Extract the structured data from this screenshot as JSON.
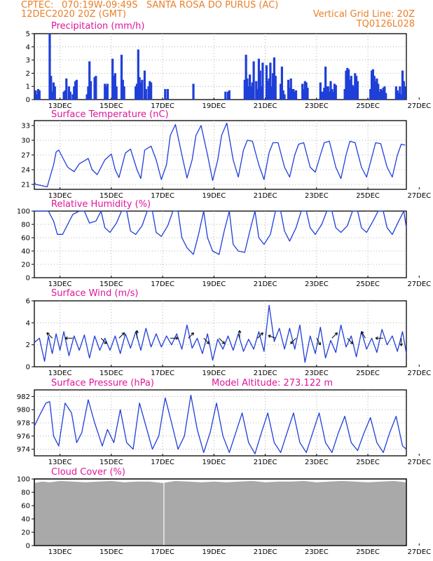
{
  "header": {
    "source": "CPTEC:",
    "location": "070:19W-09:49S   SANTA ROSA DO PURUS (AC)",
    "datetime": "12DEC2020 20Z (GMT)",
    "grid_note": "Vertical Grid Line: 20Z",
    "run_code": "TQ0126L028"
  },
  "colors": {
    "header": "#e8802a",
    "titles": "#e0169a",
    "lines": "#1f3fd8",
    "cloud": "#a9a9a9",
    "grid": "#a0a0a0"
  },
  "chart_data": [
    {
      "id": "precip",
      "type": "bar",
      "title": "Precipitation (mm/h)",
      "ylim": [
        0,
        5
      ],
      "yticks": [
        0,
        1,
        2,
        3,
        4,
        5
      ],
      "xticks": [
        "13DEC",
        "15DEC",
        "17DEC",
        "19DEC",
        "21DEC",
        "23DEC",
        "25DEC",
        "27DEC"
      ],
      "grid": true,
      "x_day_offset": [
        0.05,
        0.1,
        0.15,
        0.2,
        0.6,
        0.65,
        0.7,
        0.75,
        0.8,
        1.15,
        1.2,
        1.25,
        1.35,
        1.4,
        1.5,
        1.55,
        1.6,
        1.65,
        2.05,
        2.1,
        2.15,
        2.2,
        2.35,
        2.4,
        2.75,
        2.8,
        2.85,
        3.05,
        3.1,
        3.15,
        3.2,
        3.4,
        3.45,
        3.5,
        3.95,
        4.0,
        4.05,
        4.1,
        4.15,
        4.2,
        4.3,
        4.35,
        4.45,
        4.5,
        4.55,
        5.1,
        5.2,
        6.2,
        7.45,
        7.55,
        7.6,
        8.2,
        8.25,
        8.3,
        8.35,
        8.4,
        8.45,
        8.5,
        8.55,
        8.65,
        8.7,
        8.75,
        8.8,
        8.85,
        8.9,
        9.05,
        9.1,
        9.15,
        9.2,
        9.25,
        9.3,
        9.35,
        9.4,
        9.6,
        9.65,
        9.7,
        9.75,
        9.9,
        9.95,
        10.0,
        10.05,
        10.1,
        10.15,
        10.2,
        10.45,
        10.5,
        10.55,
        10.6,
        10.65,
        11.15,
        11.2,
        11.25,
        11.3,
        11.35,
        11.4,
        11.45,
        11.5,
        11.55,
        11.6,
        11.65,
        11.7,
        11.75,
        12.1,
        12.15,
        12.2,
        12.25,
        12.3,
        12.35,
        12.4,
        12.45,
        12.5,
        12.55,
        12.6,
        13.1,
        13.15,
        13.2,
        13.25,
        13.3,
        13.35,
        13.4,
        13.45,
        13.5,
        13.55,
        13.6,
        13.65,
        13.7,
        14.1,
        14.15,
        14.2,
        14.25,
        14.3,
        14.35,
        14.4,
        14.45
      ],
      "values": [
        0.7,
        0.4,
        0.8,
        0.7,
        5.0,
        1.8,
        0.6,
        1.3,
        1.0,
        0.6,
        0.7,
        1.6,
        1.0,
        0.6,
        0.4,
        1.0,
        1.4,
        1.5,
        0.4,
        1.0,
        2.9,
        1.4,
        1.7,
        1.8,
        1.2,
        1.0,
        1.2,
        3.1,
        1.8,
        2.0,
        1.0,
        3.4,
        1.5,
        1.0,
        1.0,
        1.2,
        3.8,
        1.7,
        1.3,
        1.5,
        2.2,
        0.8,
        1.0,
        1.4,
        1.3,
        0.8,
        0.8,
        1.2,
        0.6,
        0.6,
        0.7,
        1.5,
        3.4,
        1.6,
        1.0,
        1.9,
        1.0,
        1.3,
        2.9,
        1.4,
        0.8,
        3.1,
        2.2,
        1.0,
        2.8,
        2.6,
        1.4,
        1.6,
        2.8,
        1.0,
        2.0,
        3.2,
        1.8,
        1.2,
        2.5,
        0.7,
        0.4,
        1.5,
        0.9,
        1.6,
        0.8,
        0.8,
        0.6,
        0.7,
        1.2,
        0.8,
        1.4,
        1.3,
        0.9,
        1.3,
        0.6,
        0.6,
        0.9,
        2.5,
        1.0,
        1.0,
        0.6,
        1.4,
        0.8,
        0.6,
        1.2,
        1.1,
        0.8,
        2.2,
        2.4,
        2.3,
        1.5,
        1.8,
        1.1,
        1.0,
        2.0,
        1.8,
        1.4,
        0.8,
        2.2,
        2.3,
        1.8,
        1.4,
        1.6,
        1.2,
        0.6,
        0.8,
        0.7,
        0.9,
        1.0,
        0.5,
        1.0,
        0.7,
        0.5,
        1.0,
        0.4,
        2.2,
        1.4,
        1.0,
        1.3,
        1.6,
        0.9
      ]
    },
    {
      "id": "temp",
      "type": "line",
      "title": "Surface Temperature (nC)",
      "ylim": [
        20,
        34
      ],
      "yticks": [
        21,
        24,
        27,
        30,
        33
      ],
      "grid": true,
      "xticks": [
        "13DEC",
        "15DEC",
        "17DEC",
        "19DEC",
        "21DEC",
        "23DEC",
        "25DEC",
        "27DEC"
      ],
      "x_day_offset": [
        0.0,
        0.05,
        0.25,
        0.5,
        0.75,
        0.85,
        0.95,
        1.1,
        1.3,
        1.55,
        1.75,
        1.95,
        2.1,
        2.25,
        2.45,
        2.75,
        3.0,
        3.15,
        3.3,
        3.55,
        3.75,
        4.0,
        4.15,
        4.3,
        4.55,
        4.75,
        4.95,
        5.15,
        5.3,
        5.5,
        5.75,
        5.95,
        6.15,
        6.3,
        6.5,
        6.75,
        6.95,
        7.15,
        7.3,
        7.5,
        7.75,
        7.95,
        8.15,
        8.3,
        8.5,
        8.75,
        8.95,
        9.15,
        9.3,
        9.5,
        9.75,
        9.95,
        10.15,
        10.3,
        10.5,
        10.75,
        10.95,
        11.15,
        11.3,
        11.5,
        11.75,
        11.95,
        12.15,
        12.3,
        12.5,
        12.75,
        12.95,
        13.15,
        13.3,
        13.5,
        13.75,
        13.95,
        14.15,
        14.3,
        14.45
      ],
      "values": [
        21.5,
        21.0,
        20.8,
        20.5,
        25.0,
        27.6,
        28.0,
        26.5,
        24.5,
        23.6,
        25.2,
        25.8,
        26.3,
        24.0,
        23.0,
        26.0,
        27.2,
        24.0,
        22.4,
        27.4,
        28.2,
        24.0,
        22.2,
        28.0,
        28.8,
        26.0,
        22.0,
        25.0,
        31.0,
        33.2,
        27.0,
        22.3,
        26.0,
        31.0,
        33.0,
        27.0,
        21.8,
        26.0,
        31.0,
        33.5,
        26.0,
        22.5,
        28.0,
        30.0,
        29.8,
        25.0,
        22.0,
        27.5,
        29.5,
        29.5,
        24.5,
        22.5,
        27.0,
        29.2,
        29.5,
        24.5,
        23.5,
        27.0,
        29.5,
        29.8,
        24.5,
        22.2,
        27.0,
        29.8,
        29.5,
        24.5,
        22.5,
        26.5,
        29.5,
        29.3,
        24.5,
        22.5,
        27.0,
        29.2,
        29.0
      ]
    },
    {
      "id": "rh",
      "type": "line",
      "title": "Relative Humidity (%)",
      "ylim": [
        0,
        100
      ],
      "yticks": [
        0,
        20,
        40,
        60,
        80,
        100
      ],
      "grid": true,
      "xticks": [
        "13DEC",
        "15DEC",
        "17DEC",
        "19DEC",
        "21DEC",
        "23DEC",
        "25DEC",
        "27DEC"
      ],
      "x_day_offset": [
        0.0,
        0.3,
        0.55,
        0.75,
        0.9,
        1.1,
        1.3,
        1.5,
        1.75,
        1.95,
        2.15,
        2.4,
        2.6,
        2.75,
        2.95,
        3.2,
        3.4,
        3.6,
        3.75,
        3.95,
        4.2,
        4.4,
        4.6,
        4.75,
        4.95,
        5.2,
        5.4,
        5.6,
        5.75,
        5.95,
        6.2,
        6.4,
        6.6,
        6.75,
        6.95,
        7.2,
        7.4,
        7.6,
        7.75,
        7.95,
        8.2,
        8.4,
        8.6,
        8.75,
        8.95,
        9.2,
        9.4,
        9.6,
        9.75,
        9.95,
        10.2,
        10.4,
        10.6,
        10.75,
        10.95,
        11.2,
        11.4,
        11.6,
        11.75,
        11.95,
        12.2,
        12.4,
        12.6,
        12.75,
        12.95,
        13.2,
        13.4,
        13.6,
        13.75,
        13.95,
        14.2,
        14.4,
        14.5
      ],
      "values": [
        100,
        100,
        100,
        85,
        65,
        65,
        80,
        95,
        100,
        100,
        82,
        85,
        100,
        75,
        68,
        82,
        100,
        100,
        70,
        65,
        78,
        100,
        100,
        68,
        62,
        78,
        100,
        100,
        60,
        45,
        35,
        65,
        100,
        60,
        40,
        35,
        70,
        100,
        50,
        40,
        38,
        70,
        100,
        60,
        50,
        65,
        100,
        100,
        70,
        55,
        75,
        100,
        100,
        75,
        65,
        80,
        100,
        100,
        75,
        68,
        78,
        100,
        100,
        75,
        68,
        85,
        100,
        100,
        75,
        65,
        85,
        100,
        75
      ]
    },
    {
      "id": "wind",
      "type": "line",
      "title": "Surface Wind (m/s)",
      "ylim": [
        0,
        6
      ],
      "yticks": [
        0,
        2,
        4,
        6
      ],
      "grid": true,
      "xticks": [
        "13DEC",
        "15DEC",
        "17DEC",
        "19DEC",
        "21DEC",
        "23DEC",
        "25DEC",
        "27DEC"
      ],
      "x_day_offset": [
        0.0,
        0.2,
        0.4,
        0.55,
        0.7,
        0.85,
        1.0,
        1.15,
        1.35,
        1.55,
        1.75,
        1.95,
        2.15,
        2.35,
        2.55,
        2.75,
        2.95,
        3.15,
        3.35,
        3.55,
        3.75,
        3.95,
        4.15,
        4.35,
        4.55,
        4.75,
        4.95,
        5.15,
        5.35,
        5.55,
        5.75,
        5.95,
        6.15,
        6.35,
        6.55,
        6.75,
        6.95,
        7.15,
        7.35,
        7.55,
        7.75,
        7.95,
        8.15,
        8.35,
        8.55,
        8.75,
        8.95,
        9.15,
        9.35,
        9.55,
        9.75,
        9.95,
        10.15,
        10.35,
        10.55,
        10.75,
        10.95,
        11.15,
        11.35,
        11.55,
        11.75,
        11.95,
        12.15,
        12.35,
        12.55,
        12.75,
        12.95,
        13.15,
        13.35,
        13.55,
        13.75,
        13.95,
        14.15,
        14.35,
        14.5
      ],
      "values": [
        2.2,
        2.6,
        0.5,
        2.8,
        1.2,
        3.0,
        1.5,
        3.2,
        1.0,
        2.8,
        1.5,
        2.9,
        0.8,
        2.8,
        1.5,
        2.6,
        1.5,
        2.8,
        1.2,
        3.0,
        1.7,
        3.2,
        1.5,
        3.5,
        1.8,
        3.0,
        1.8,
        2.8,
        2.0,
        3.0,
        1.6,
        3.8,
        1.7,
        2.6,
        1.2,
        3.0,
        0.6,
        2.5,
        1.6,
        2.8,
        1.5,
        3.0,
        1.4,
        2.5,
        1.6,
        3.2,
        1.4,
        5.6,
        2.3,
        3.5,
        1.6,
        3.5,
        1.6,
        3.8,
        0.4,
        2.8,
        1.2,
        3.6,
        0.8,
        2.4,
        1.3,
        3.8,
        1.8,
        2.8,
        0.9,
        3.2,
        1.6,
        2.6,
        1.3,
        3.4,
        2.0,
        2.8,
        1.4,
        3.2,
        1.2
      ]
    },
    {
      "id": "pres",
      "type": "line",
      "title": "Surface Pressure (hPa)",
      "annotation": "Model Altitude: 273.122 m",
      "ylim": [
        973,
        983
      ],
      "yticks": [
        974,
        976,
        978,
        980,
        982
      ],
      "grid": true,
      "xticks": [
        "13DEC",
        "15DEC",
        "17DEC",
        "19DEC",
        "21DEC",
        "23DEC",
        "25DEC",
        "27DEC"
      ],
      "x_day_offset": [
        0.0,
        0.25,
        0.45,
        0.6,
        0.75,
        0.95,
        1.2,
        1.45,
        1.65,
        1.85,
        2.1,
        2.35,
        2.65,
        2.85,
        3.1,
        3.35,
        3.6,
        3.85,
        4.1,
        4.35,
        4.6,
        4.85,
        5.1,
        5.35,
        5.6,
        5.85,
        6.1,
        6.35,
        6.6,
        6.85,
        7.1,
        7.35,
        7.6,
        7.85,
        8.1,
        8.35,
        8.6,
        8.85,
        9.1,
        9.35,
        9.6,
        9.85,
        10.1,
        10.35,
        10.6,
        10.85,
        11.1,
        11.35,
        11.6,
        11.85,
        12.1,
        12.35,
        12.6,
        12.85,
        13.1,
        13.35,
        13.6,
        13.85,
        14.1,
        14.35,
        14.5
      ],
      "values": [
        977.5,
        979.5,
        981.0,
        981.2,
        976.0,
        974.5,
        981.0,
        979.5,
        975.0,
        976.5,
        981.5,
        978.0,
        974.5,
        977.0,
        975.0,
        980.0,
        975.0,
        974.0,
        981.0,
        977.5,
        974.0,
        976.0,
        981.8,
        978.0,
        974.0,
        976.0,
        982.2,
        977.0,
        973.5,
        976.5,
        981.0,
        976.0,
        973.5,
        976.5,
        979.5,
        975.0,
        973.3,
        976.5,
        979.5,
        975.0,
        973.5,
        976.5,
        979.5,
        975.0,
        973.5,
        976.5,
        979.5,
        975.0,
        973.5,
        976.5,
        979.0,
        975.0,
        973.8,
        976.5,
        978.8,
        975.0,
        973.5,
        976.5,
        979.0,
        974.5,
        974.0
      ]
    },
    {
      "id": "cloud",
      "type": "area",
      "title": "Cloud Cover (%)",
      "ylim": [
        0,
        100
      ],
      "yticks": [
        0,
        20,
        40,
        60,
        80,
        100
      ],
      "grid": false,
      "xticks": [
        "13DEC",
        "15DEC",
        "17DEC",
        "19DEC",
        "21DEC",
        "23DEC",
        "25DEC",
        "27DEC"
      ],
      "x_day_offset": [
        0.0,
        0.3,
        0.6,
        1.0,
        1.5,
        2.0,
        2.5,
        3.0,
        3.5,
        4.0,
        4.5,
        5.0,
        5.5,
        6.0,
        6.5,
        7.0,
        7.5,
        8.0,
        8.5,
        9.0,
        9.5,
        10.0,
        10.5,
        11.0,
        11.5,
        12.0,
        12.5,
        13.0,
        13.5,
        14.0,
        14.5
      ],
      "values": [
        94,
        96,
        95,
        97,
        96,
        95,
        96,
        97,
        95,
        96,
        96,
        94,
        97,
        96,
        95,
        96,
        95,
        96,
        97,
        95,
        96,
        96,
        97,
        95,
        96,
        97,
        96,
        95,
        96,
        97,
        95
      ]
    }
  ]
}
